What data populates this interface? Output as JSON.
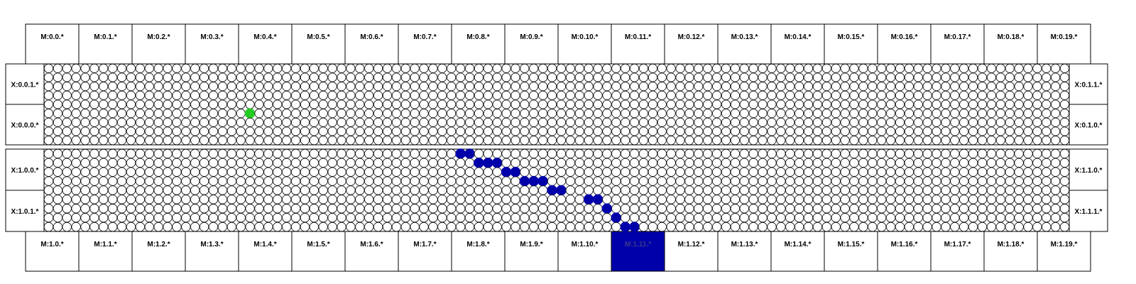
{
  "top_ports": [
    "M:0.0.*",
    "M:0.1.*",
    "M:0.2.*",
    "M:0.3.*",
    "M:0.4.*",
    "M:0.5.*",
    "M:0.6.*",
    "M:0.7.*",
    "M:0.8.*",
    "M:0.9.*",
    "M:0.10.*",
    "M:0.11.*",
    "M:0.12.*",
    "M:0.13.*",
    "M:0.14.*",
    "M:0.15.*",
    "M:0.16.*",
    "M:0.17.*",
    "M:0.18.*",
    "M:0.19.*"
  ],
  "bottom_ports": [
    "M:1.0.*",
    "M:1.1.*",
    "M:1.2.*",
    "M:1.3.*",
    "M:1.4.*",
    "M:1.5.*",
    "M:1.6.*",
    "M:1.7.*",
    "M:1.8.*",
    "M:1.9.*",
    "M:1.10.*",
    "M:1.11.*",
    "M:1.12.*",
    "M:1.13.*",
    "M:1.14.*",
    "M:1.15.*",
    "M:1.16.*",
    "M:1.17.*",
    "M:1.18.*",
    "M:1.19.*"
  ],
  "highlighted_bottom_port": 11,
  "blocks": [
    {
      "left_labels": [
        "X:0.0.1.*",
        "X:0.0.0.*"
      ],
      "right_labels": [
        "X:0.1.1.*",
        "X:0.1.0.*"
      ],
      "active_cells": [
        [
          5,
          22
        ]
      ],
      "active_color": "#22cc22"
    },
    {
      "left_labels": [
        "X:1.0.0.*",
        "X:1.0.1.*"
      ],
      "right_labels": [
        "X:1.1.0.*",
        "X:1.1.1.*"
      ],
      "active_cells": [
        [
          0,
          45
        ],
        [
          0,
          46
        ],
        [
          1,
          47
        ],
        [
          1,
          48
        ],
        [
          1,
          49
        ],
        [
          2,
          50
        ],
        [
          2,
          51
        ],
        [
          3,
          52
        ],
        [
          3,
          53
        ],
        [
          3,
          54
        ],
        [
          4,
          55
        ],
        [
          4,
          56
        ],
        [
          5,
          59
        ],
        [
          5,
          60
        ],
        [
          6,
          61
        ],
        [
          7,
          62
        ],
        [
          8,
          63
        ],
        [
          8,
          64
        ]
      ],
      "active_color": "#0000aa"
    }
  ],
  "colors": {
    "line": "#000000",
    "cell": "#ffffff",
    "highlight": "#0000aa"
  }
}
